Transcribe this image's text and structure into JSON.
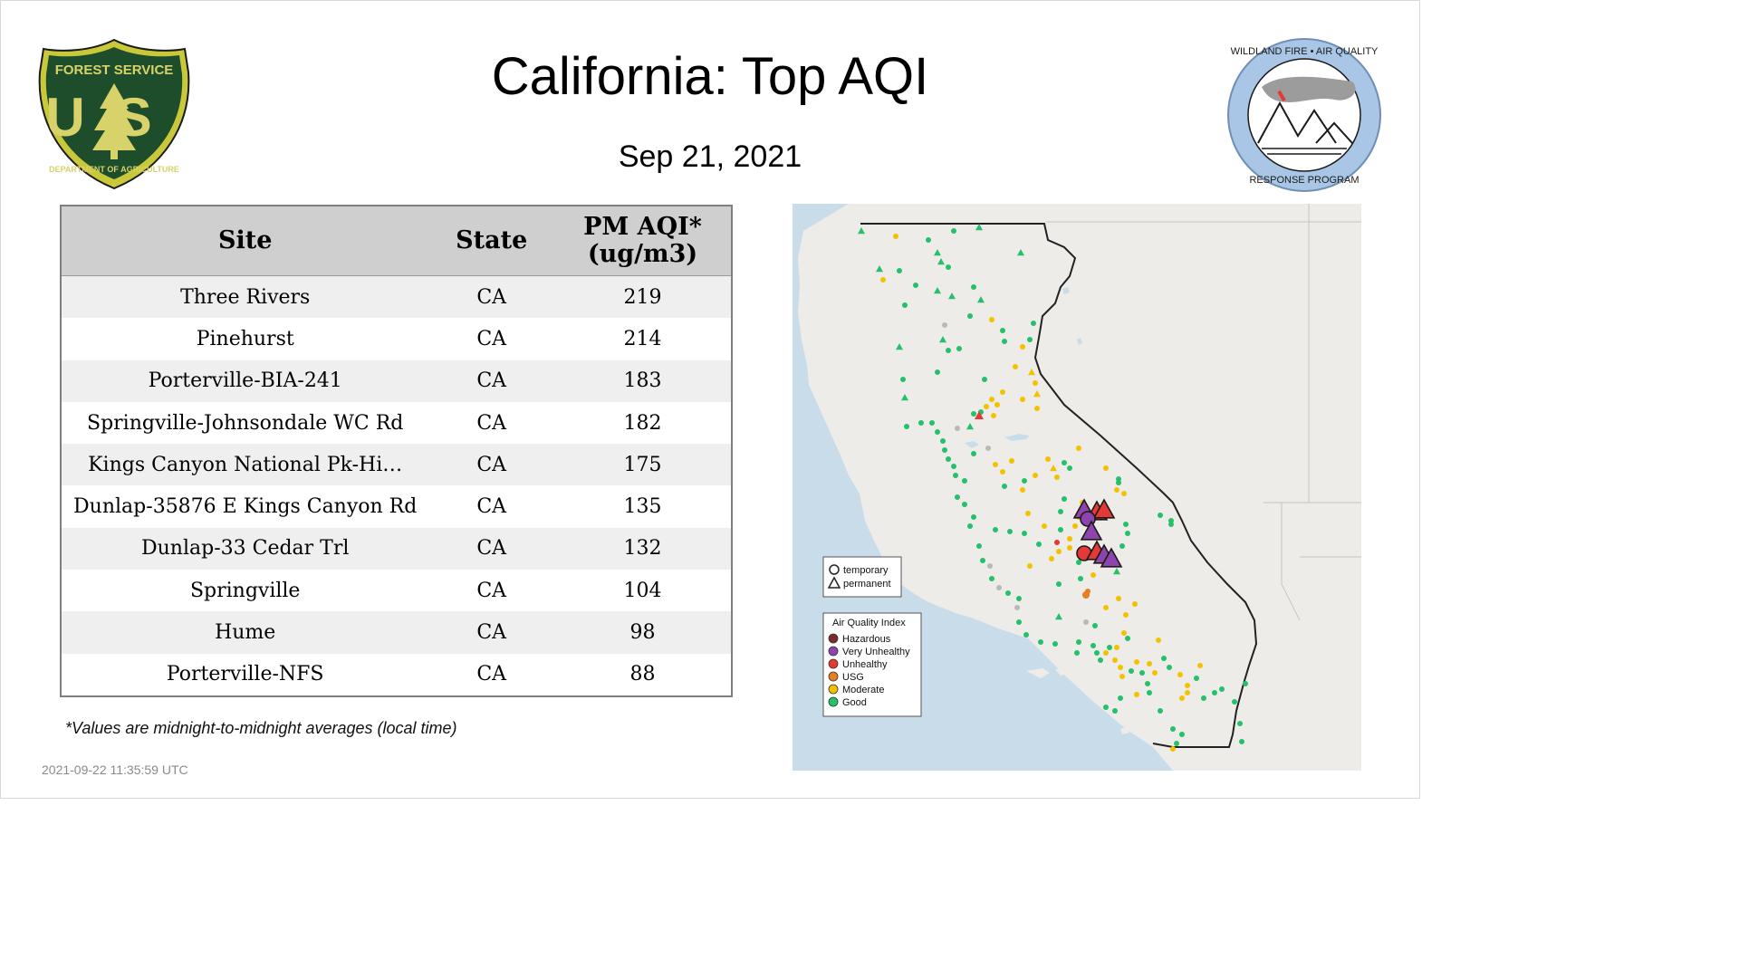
{
  "title": "California: Top AQI",
  "date": "Sep 21, 2021",
  "logos": {
    "forest_service": {
      "top": "FOREST SERVICE",
      "mid": "US",
      "bottom": "DEPARTMENT OF AGRICULTURE"
    },
    "wildland_fire": {
      "top": "WILDLAND FIRE • AIR QUALITY",
      "bottom": "RESPONSE PROGRAM"
    }
  },
  "table": {
    "headers": {
      "site": "Site",
      "state": "State",
      "aqi_line1": "PM AQI*",
      "aqi_line2": "(ug/m3)"
    },
    "rows": [
      {
        "site": "Three Rivers",
        "state": "CA",
        "aqi": "219"
      },
      {
        "site": "Pinehurst",
        "state": "CA",
        "aqi": "214"
      },
      {
        "site": "Porterville-BIA-241",
        "state": "CA",
        "aqi": "183"
      },
      {
        "site": "Springville-Johnsondale WC Rd",
        "state": "CA",
        "aqi": "182"
      },
      {
        "site": "Kings Canyon National Pk-Hi…",
        "state": "CA",
        "aqi": "175"
      },
      {
        "site": "Dunlap-35876 E Kings Canyon Rd",
        "state": "CA",
        "aqi": "135"
      },
      {
        "site": "Dunlap-33 Cedar Trl",
        "state": "CA",
        "aqi": "132"
      },
      {
        "site": "Springville",
        "state": "CA",
        "aqi": "104"
      },
      {
        "site": "Hume",
        "state": "CA",
        "aqi": "98"
      },
      {
        "site": "Porterville-NFS",
        "state": "CA",
        "aqi": "88"
      }
    ]
  },
  "footnote": "*Values are midnight-to-midnight averages (local time)",
  "timestamp": "2021-09-22 11:35:59 UTC",
  "map": {
    "shape_legend": {
      "temporary": "temporary",
      "permanent": "permanent"
    },
    "aqi_legend": {
      "title": "Air Quality Index",
      "items": [
        {
          "label": "Hazardous",
          "color": "#7e2a2a"
        },
        {
          "label": "Very Unhealthy",
          "color": "#8e44ad"
        },
        {
          "label": "Unhealthy",
          "color": "#e53935"
        },
        {
          "label": "USG",
          "color": "#e67e22"
        },
        {
          "label": "Moderate",
          "color": "#f2c200"
        },
        {
          "label": "Good",
          "color": "#27c06a"
        }
      ]
    }
  },
  "colors": {
    "good": "#27c06a",
    "moderate": "#f2c200",
    "usg": "#e67e22",
    "unhealthy": "#e53935",
    "very_unhealthy": "#8e44ad",
    "no_data": "#b9b9b9",
    "ocean": "#c9dcea",
    "land": "#eeece9"
  }
}
